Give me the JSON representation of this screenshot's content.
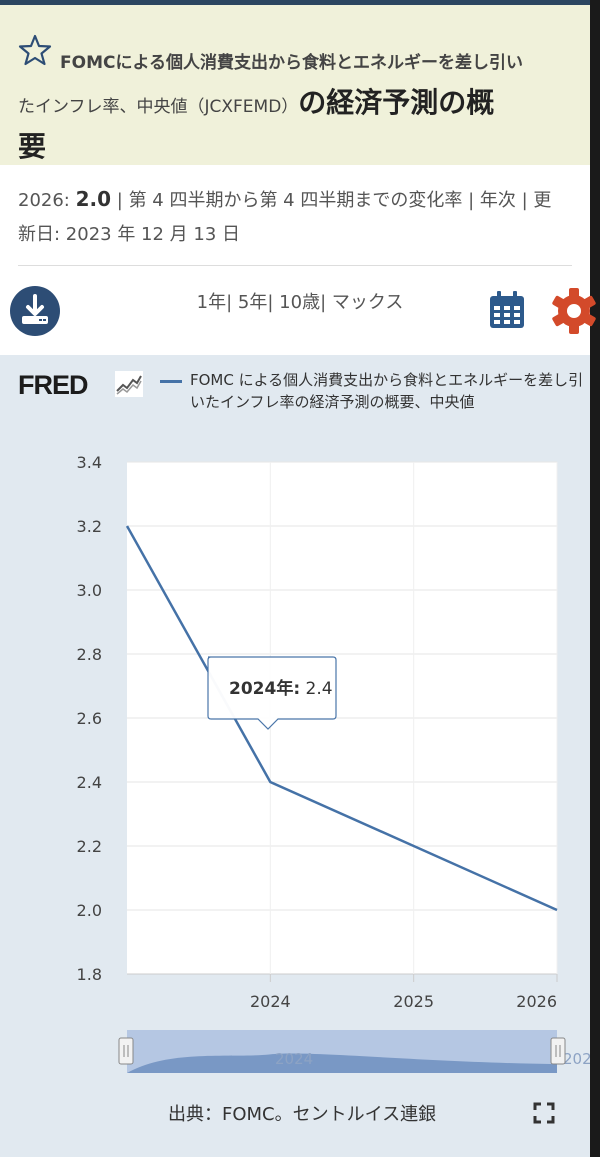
{
  "title": {
    "line1": "FOMCによる個人消費支出から食料とエネルギーを差し引い",
    "line2_small": "たインフレ率、中央値（JCXFEMD）",
    "line2_big": "の経済予測の概",
    "line3_big": "要"
  },
  "meta": {
    "year_label": "2026:",
    "value": "2.0",
    "description": "| 第 4 四半期から第 4 四半期までの変化率 | 年次 | 更",
    "updated": "新日: 2023 年 12 月 13 日"
  },
  "toolbar": {
    "ranges": [
      "1年|",
      "5年|",
      "10歳|",
      "マックス"
    ]
  },
  "chart": {
    "logo": "FRED",
    "legend_text": "FOMC による個人消費支出から食料とエネルギーを差し引いたインフレ率の経済予測の概要、中央値",
    "tooltip_label": "2024年:",
    "tooltip_value": "2.4",
    "source": "出典：FOMC。セントルイス連銀",
    "line_color": "#4572a7"
  },
  "chart_data": {
    "type": "line",
    "x": [
      2023,
      2024,
      2025,
      2026
    ],
    "values": [
      3.2,
      2.4,
      2.2,
      2.0
    ],
    "x_tick_labels": [
      "2024",
      "2025",
      "2026"
    ],
    "y_tick_labels": [
      "1.8",
      "2.0",
      "2.2",
      "2.4",
      "2.6",
      "2.8",
      "3.0",
      "3.2",
      "3.4"
    ],
    "ylim": [
      1.8,
      3.4
    ],
    "grid": true,
    "navigator_label": "2024",
    "navigator_end_label": "202"
  }
}
